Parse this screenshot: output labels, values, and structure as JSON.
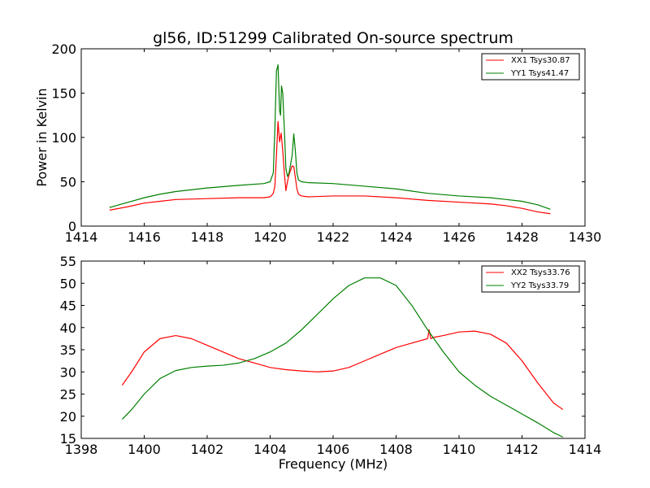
{
  "title": "gl56, ID:51299 Calibrated On-source spectrum",
  "colors": {
    "red": "#ff0000",
    "green": "#008000"
  },
  "chart_data": [
    {
      "type": "line",
      "title": "gl56, ID:51299 Calibrated On-source spectrum",
      "xlabel": "",
      "ylabel": "Power in Kelvin",
      "xlim": [
        1414,
        1430
      ],
      "ylim": [
        0,
        200
      ],
      "xticks": [
        "1414",
        "1416",
        "1418",
        "1420",
        "1422",
        "1424",
        "1426",
        "1428",
        "1430"
      ],
      "yticks": [
        "0",
        "50",
        "100",
        "150",
        "200"
      ],
      "legend_position": "top-right",
      "grid": false,
      "series": [
        {
          "name": "XX1 Tsys30.87",
          "color": "#ff0000",
          "x": [
            1414.9,
            1415.5,
            1416.0,
            1416.5,
            1417.0,
            1418.0,
            1419.0,
            1419.8,
            1420.0,
            1420.1,
            1420.15,
            1420.2,
            1420.25,
            1420.3,
            1420.35,
            1420.4,
            1420.45,
            1420.5,
            1420.55,
            1420.6,
            1420.7,
            1420.75,
            1420.8,
            1420.85,
            1420.9,
            1421.0,
            1421.2,
            1422.0,
            1423.0,
            1424.0,
            1425.0,
            1426.0,
            1427.0,
            1427.5,
            1428.0,
            1428.5,
            1428.9
          ],
          "y": [
            18,
            22,
            26,
            28,
            30,
            31,
            32,
            32,
            33,
            37,
            45,
            80,
            118,
            95,
            105,
            85,
            60,
            40,
            50,
            58,
            68,
            67,
            55,
            42,
            36,
            34,
            33,
            34,
            34,
            32,
            29,
            27,
            25,
            23,
            20,
            16,
            14
          ]
        },
        {
          "name": "YY1 Tsys41.47",
          "color": "#008000",
          "x": [
            1414.9,
            1415.5,
            1416.0,
            1416.5,
            1417.0,
            1418.0,
            1419.0,
            1419.8,
            1420.0,
            1420.1,
            1420.15,
            1420.2,
            1420.25,
            1420.3,
            1420.33,
            1420.36,
            1420.4,
            1420.45,
            1420.5,
            1420.55,
            1420.6,
            1420.7,
            1420.75,
            1420.8,
            1420.85,
            1420.9,
            1421.0,
            1421.2,
            1422.0,
            1423.0,
            1424.0,
            1425.0,
            1426.0,
            1427.0,
            1427.5,
            1428.0,
            1428.5,
            1428.9
          ],
          "y": [
            21,
            27,
            32,
            36,
            39,
            43,
            46,
            48,
            50,
            60,
            110,
            175,
            182,
            130,
            125,
            158,
            150,
            110,
            65,
            56,
            60,
            80,
            104,
            85,
            60,
            52,
            50,
            49,
            48,
            45,
            42,
            37,
            34,
            32,
            30,
            28,
            24,
            19
          ]
        }
      ]
    },
    {
      "type": "line",
      "title": "",
      "xlabel": "Frequency (MHz)",
      "ylabel": "",
      "xlim": [
        1398,
        1414
      ],
      "ylim": [
        15,
        55
      ],
      "xticks": [
        "1398",
        "1400",
        "1402",
        "1404",
        "1406",
        "1408",
        "1410",
        "1412",
        "1414"
      ],
      "yticks": [
        "15",
        "20",
        "25",
        "30",
        "35",
        "40",
        "45",
        "50",
        "55"
      ],
      "legend_position": "top-right",
      "grid": false,
      "series": [
        {
          "name": "XX2 Tsys33.76",
          "color": "#ff0000",
          "x": [
            1399.3,
            1399.6,
            1400.0,
            1400.5,
            1401.0,
            1401.5,
            1402.0,
            1402.5,
            1403.0,
            1403.5,
            1404.0,
            1404.5,
            1405.0,
            1405.5,
            1406.0,
            1406.5,
            1407.0,
            1407.5,
            1408.0,
            1408.5,
            1409.0,
            1409.05,
            1409.1,
            1409.2,
            1409.5,
            1410.0,
            1410.5,
            1411.0,
            1411.5,
            1412.0,
            1412.5,
            1413.0,
            1413.3
          ],
          "y": [
            27,
            30,
            34.5,
            37.5,
            38.2,
            37.5,
            36,
            34.5,
            33,
            32,
            31,
            30.5,
            30.2,
            30,
            30.2,
            31,
            32.5,
            34,
            35.5,
            36.5,
            37.5,
            39.5,
            37.5,
            37.8,
            38.2,
            39,
            39.2,
            38.5,
            36.5,
            32.5,
            27.5,
            23,
            21.5
          ]
        },
        {
          "name": "YY2 Tsys33.79",
          "color": "#008000",
          "x": [
            1399.3,
            1399.6,
            1400.0,
            1400.5,
            1401.0,
            1401.5,
            1402.0,
            1402.5,
            1403.0,
            1403.5,
            1404.0,
            1404.5,
            1405.0,
            1405.5,
            1406.0,
            1406.5,
            1407.0,
            1407.5,
            1408.0,
            1408.5,
            1409.0,
            1409.5,
            1410.0,
            1410.5,
            1411.0,
            1411.5,
            1412.0,
            1412.5,
            1413.0,
            1413.3
          ],
          "y": [
            19.3,
            21.5,
            25,
            28.5,
            30.3,
            31,
            31.3,
            31.5,
            32,
            33,
            34.5,
            36.5,
            39.5,
            43,
            46.5,
            49.5,
            51.2,
            51.2,
            49.5,
            45,
            39.5,
            34.5,
            30,
            27,
            24.5,
            22.5,
            20.5,
            18.5,
            16.3,
            15.3
          ]
        }
      ]
    }
  ]
}
